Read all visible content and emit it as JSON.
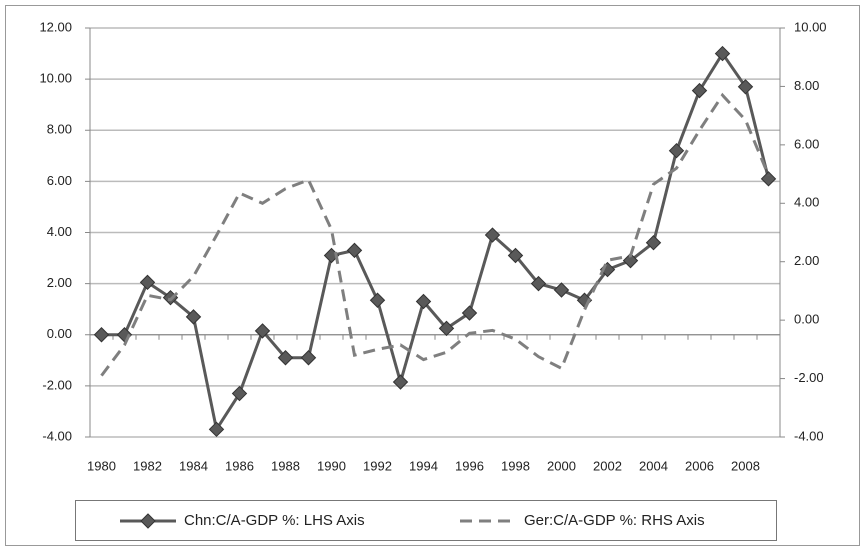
{
  "chart_data": {
    "type": "line",
    "categories": [
      1980,
      null,
      1982,
      null,
      1984,
      null,
      1986,
      null,
      1988,
      null,
      1990,
      null,
      1992,
      null,
      1994,
      null,
      1996,
      null,
      1998,
      null,
      2000,
      null,
      2002,
      null,
      2004,
      null,
      2006,
      null,
      2008,
      null
    ],
    "series": [
      {
        "name": "Chn:C/A-GDP %: LHS Axis",
        "color": "#595959",
        "marker": "diamond",
        "line_style": "solid",
        "values": [
          0.0,
          0.0,
          2.05,
          1.45,
          0.7,
          -3.7,
          -2.3,
          0.15,
          -0.9,
          -0.9,
          3.1,
          3.3,
          1.35,
          -1.85,
          1.3,
          0.25,
          0.85,
          3.9,
          3.1,
          2.0,
          1.75,
          1.35,
          2.55,
          2.9,
          3.6,
          7.2,
          9.55,
          11.0,
          9.7,
          6.1
        ]
      },
      {
        "name": "Ger:C/A-GDP %: RHS Axis",
        "color": "#7f7f7f",
        "line_style": "dashed",
        "axis": "y2",
        "values": [
          -1.9,
          -0.85,
          0.85,
          0.7,
          1.5,
          2.9,
          4.35,
          4.0,
          4.5,
          4.8,
          3.1,
          -1.2,
          -1.0,
          -0.85,
          -1.35,
          -1.1,
          -0.45,
          -0.35,
          -0.65,
          -1.25,
          -1.65,
          0.35,
          2.05,
          2.2,
          4.65,
          5.2,
          6.5,
          7.7,
          6.85,
          4.95
        ]
      }
    ],
    "ylim": [
      -4,
      12
    ],
    "yticks": [
      {
        "value": -4,
        "label": "-4.00"
      },
      {
        "value": -2,
        "label": "-2.00"
      },
      {
        "value": 0,
        "label": "0.00"
      },
      {
        "value": 2,
        "label": "2.00"
      },
      {
        "value": 4,
        "label": "4.00"
      },
      {
        "value": 6,
        "label": "6.00"
      },
      {
        "value": 8,
        "label": "8.00"
      },
      {
        "value": 10,
        "label": "10.00"
      },
      {
        "value": 12,
        "label": "12.00"
      }
    ],
    "y2lim": [
      -4,
      10
    ],
    "y2ticks": [
      {
        "value": -4,
        "label": "-4.00"
      },
      {
        "value": -2,
        "label": "-2.00"
      },
      {
        "value": 0,
        "label": "0.00"
      },
      {
        "value": 2,
        "label": "2.00"
      },
      {
        "value": 4,
        "label": "4.00"
      },
      {
        "value": 6,
        "label": "6.00"
      },
      {
        "value": 8,
        "label": "8.00"
      },
      {
        "value": 10,
        "label": "10.00"
      }
    ],
    "grid": true,
    "legend": "bottom"
  }
}
